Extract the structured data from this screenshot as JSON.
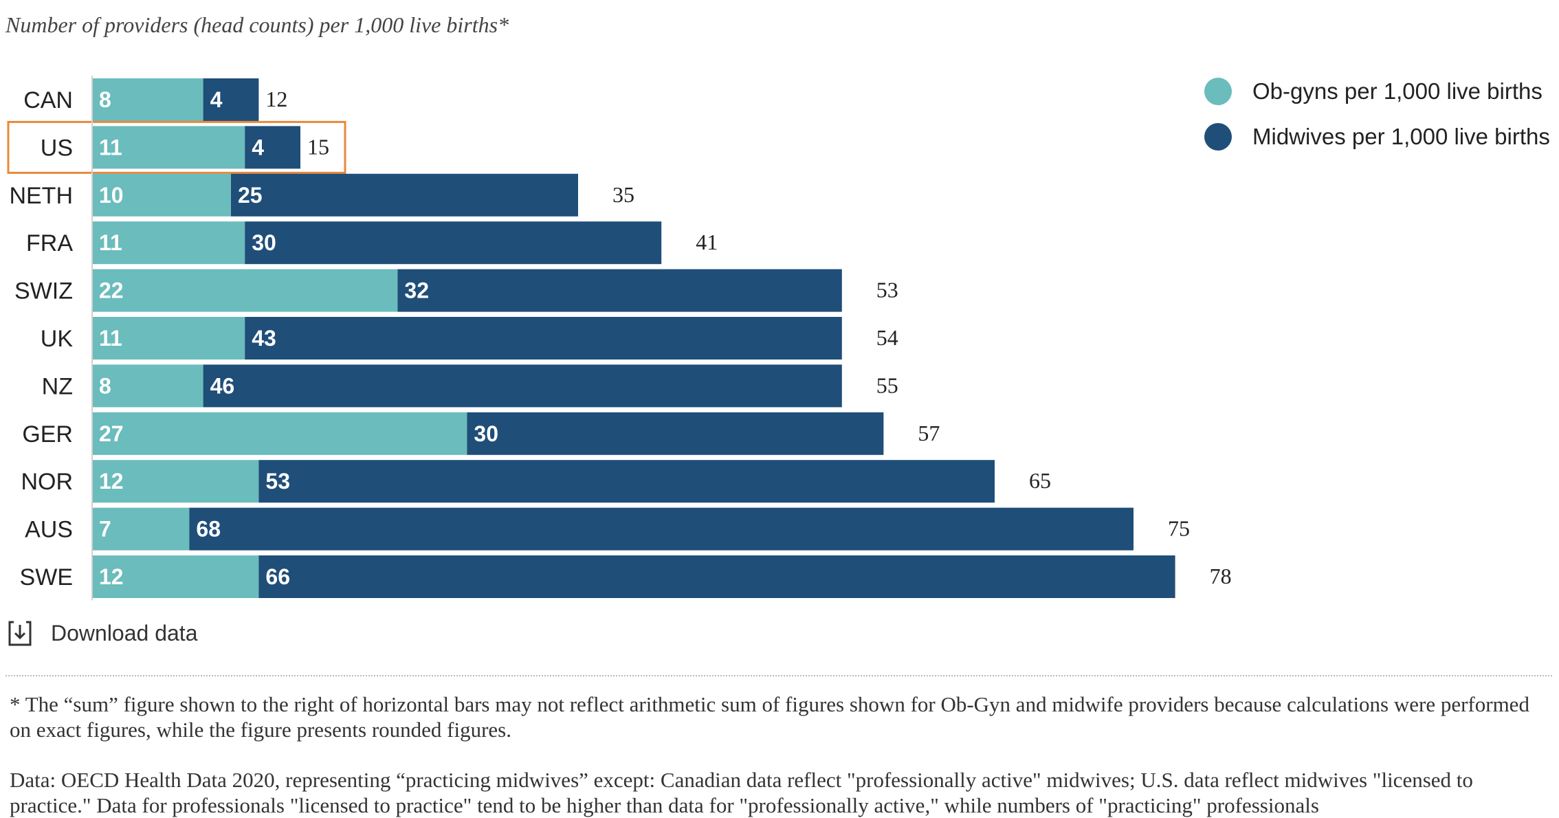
{
  "chart_data": {
    "type": "bar",
    "orientation": "horizontal",
    "stacked": true,
    "subtitle": "Number of providers (head counts) per 1,000 live births*",
    "categories": [
      "CAN",
      "US",
      "NETH",
      "FRA",
      "SWIZ",
      "UK",
      "NZ",
      "GER",
      "NOR",
      "AUS",
      "SWE"
    ],
    "series": [
      {
        "name": "Ob-gyns per 1,000 live births",
        "color": "#6bbcbc",
        "values": [
          8,
          11,
          10,
          11,
          22,
          11,
          8,
          27,
          12,
          7,
          12
        ]
      },
      {
        "name": "Midwives per 1,000 live births",
        "color": "#1f4e79",
        "values": [
          4,
          4,
          25,
          30,
          32,
          43,
          46,
          30,
          53,
          68,
          66
        ]
      }
    ],
    "totals": [
      12,
      15,
      35,
      41,
      53,
      54,
      55,
      57,
      65,
      75,
      78
    ],
    "highlight_category": "US",
    "highlight_color": "#e8893a",
    "legend_position": "top-right",
    "grid": false
  },
  "legend": {
    "items": [
      {
        "label": "Ob-gyns per 1,000 live births",
        "color": "#6bbcbc"
      },
      {
        "label": "Midwives per 1,000 live births",
        "color": "#1f4e79"
      }
    ]
  },
  "download": {
    "label": "Download data",
    "icon": "download-icon"
  },
  "notes": {
    "footnote": "* The “sum” figure shown to the right of horizontal bars may not reflect arithmetic sum of figures shown for Ob-Gyn and midwife providers because calculations were performed on exact figures, while the figure presents rounded figures.",
    "source": "Data: OECD Health Data 2020, representing “practicing midwives” except: Canadian data reflect \"professionally active\" midwives; U.S. data reflect midwives \"licensed to practice.\" Data for professionals \"licensed to practice\" tend to be higher than data for \"professionally active,\" while numbers of \"practicing\" professionals"
  }
}
